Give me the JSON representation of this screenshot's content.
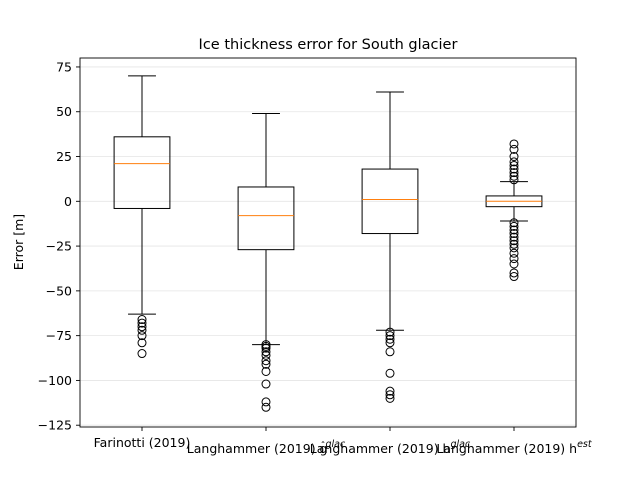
{
  "chart_data": {
    "type": "box",
    "title": "Ice thickness error for South glacier",
    "ylabel": "Error [m]",
    "xlabel": "",
    "ylim": [
      -126,
      80
    ],
    "yticks": [
      75,
      50,
      25,
      0,
      -25,
      -50,
      -75,
      -100,
      -125
    ],
    "ytick_labels": [
      "75",
      "50",
      "25",
      "0",
      "−25",
      "−50",
      "−75",
      "−100",
      "−125"
    ],
    "grid": "y",
    "colors": {
      "box": "#000000",
      "median": "#ff7f0e",
      "grid": "#e5e5e5"
    },
    "categories": [
      "Farinotti (2019)",
      "Langhammer (2019) g",
      "Langhammer (2019) h",
      "Langhammer (2019) h"
    ],
    "category_superscripts": [
      "",
      "glac",
      "glac",
      "est"
    ],
    "category_accents": [
      "",
      "̂",
      "",
      ""
    ],
    "boxes": [
      {
        "whisker_low": -63,
        "q1": -4,
        "median": 21,
        "q3": 36,
        "whisker_high": 70,
        "outliers": [
          -66,
          -68,
          -70,
          -72,
          -75,
          -79,
          -85
        ]
      },
      {
        "whisker_low": -80,
        "q1": -27,
        "median": -8,
        "q3": 8,
        "whisker_high": 49,
        "outliers": [
          -80,
          -81,
          -82,
          -84,
          -86,
          -89,
          -91,
          -95,
          -102,
          -112,
          -115
        ]
      },
      {
        "whisker_low": -72,
        "q1": -18,
        "median": 1,
        "q3": 18,
        "whisker_high": 61,
        "outliers": [
          -73,
          -75,
          -77,
          -79,
          -84,
          -96,
          -106,
          -108,
          -110
        ]
      },
      {
        "whisker_low": -11,
        "q1": -3,
        "median": 0,
        "q3": 3,
        "whisker_high": 11,
        "outliers": [
          12,
          14,
          16,
          18,
          20,
          22,
          25,
          29,
          32,
          -12,
          -14,
          -16,
          -18,
          -20,
          -22,
          -24,
          -26,
          -29,
          -32,
          -35,
          -40,
          -42
        ]
      }
    ]
  }
}
